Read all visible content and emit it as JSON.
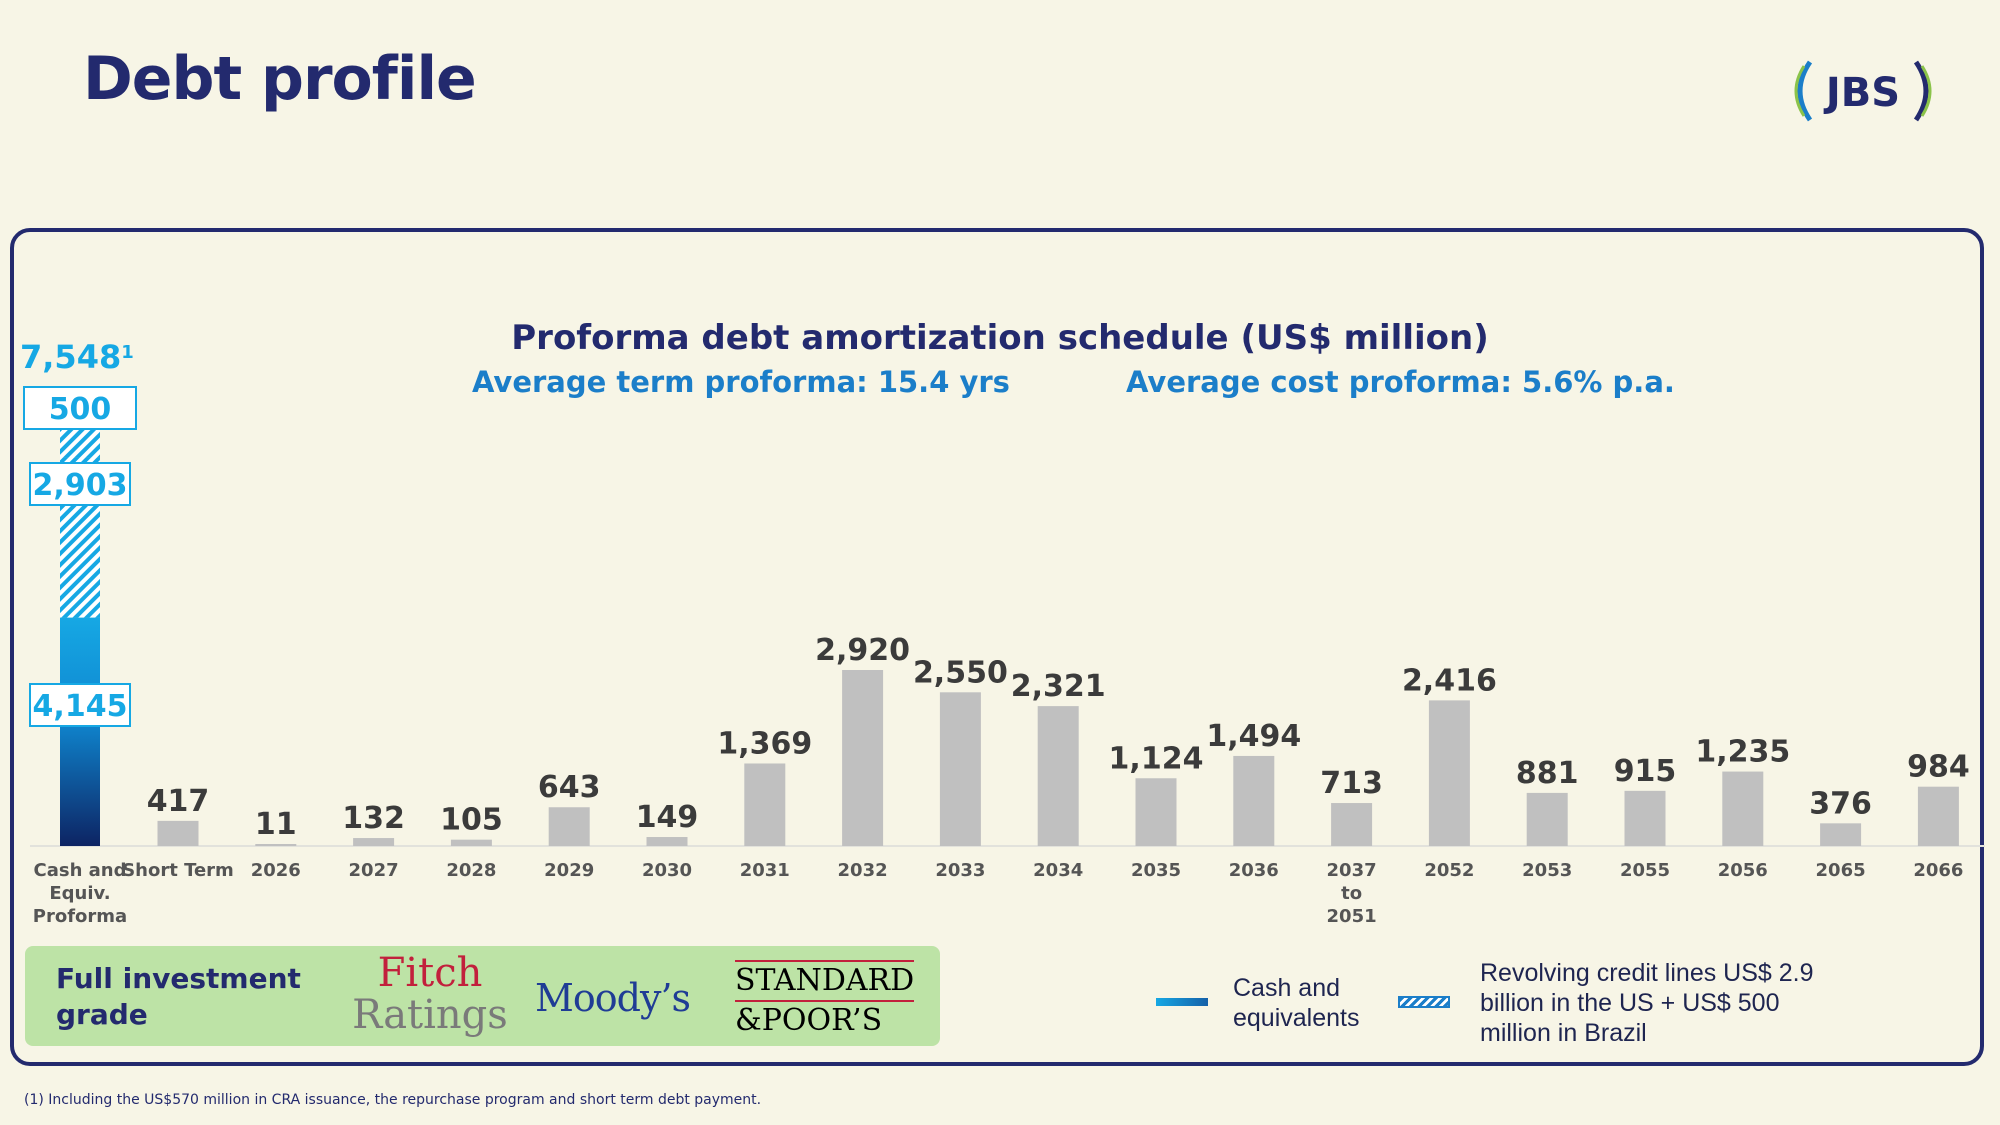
{
  "page": {
    "title": "Debt profile",
    "logo_text": "JBS",
    "footnote": "(1) Including the US$570 million in CRA issuance, the repurchase program and short term debt payment."
  },
  "colors": {
    "navy": "#232a6e",
    "accent_blue": "#1b7ec9",
    "cyan": "#16a8e4",
    "bar_gray": "#c0c0c0",
    "ratings_green": "#bde3a6"
  },
  "chart_data": {
    "type": "bar",
    "title": "Proforma debt amortization schedule (US$ million)",
    "subtitle_term": "Average term proforma: 15.4 yrs",
    "subtitle_cost": "Average cost proforma: 5.6% p.a.",
    "categories": [
      "Short Term",
      "2026",
      "2027",
      "2028",
      "2029",
      "2030",
      "2031",
      "2032",
      "2033",
      "2034",
      "2035",
      "2036",
      "2037 to 2051",
      "2052",
      "2053",
      "2055",
      "2056",
      "2065",
      "2066"
    ],
    "values": [
      417,
      11,
      132,
      105,
      643,
      149,
      1369,
      2920,
      2550,
      2321,
      1124,
      1494,
      713,
      2416,
      881,
      915,
      1235,
      376,
      984
    ],
    "value_labels": [
      "417",
      "11",
      "132",
      "105",
      "643",
      "149",
      "1,369",
      "2,920",
      "2,550",
      "2,321",
      "1,124",
      "1,494",
      "713",
      "2,416",
      "881",
      "915",
      "1,235",
      "376",
      "984"
    ],
    "cash_bar": {
      "category": "Cash and Equiv. Proforma",
      "total_label": "7,548",
      "total_footnote_mark": "1",
      "total": 7548,
      "segments": [
        {
          "name": "Cash and equivalents",
          "value": 4145,
          "label": "4,145"
        },
        {
          "name": "Revolving credit lines US",
          "value": 2903,
          "label": "2,903"
        },
        {
          "name": "Revolving credit lines Brazil",
          "value": 500,
          "label": "500"
        }
      ]
    },
    "legend": {
      "cash": "Cash and equivalents",
      "revolving": "Revolving credit lines US$ 2.9 billion in the US + US$ 500 million in Brazil"
    },
    "grid": false,
    "legend_position": "bottom-right"
  },
  "ratings": {
    "label": "Full investment grade",
    "fitch_top": "Fitch",
    "fitch_bottom": "Ratings",
    "moodys": "Moody’s",
    "sp_top": "STANDARD",
    "sp_bottom": "&POOR’S"
  }
}
